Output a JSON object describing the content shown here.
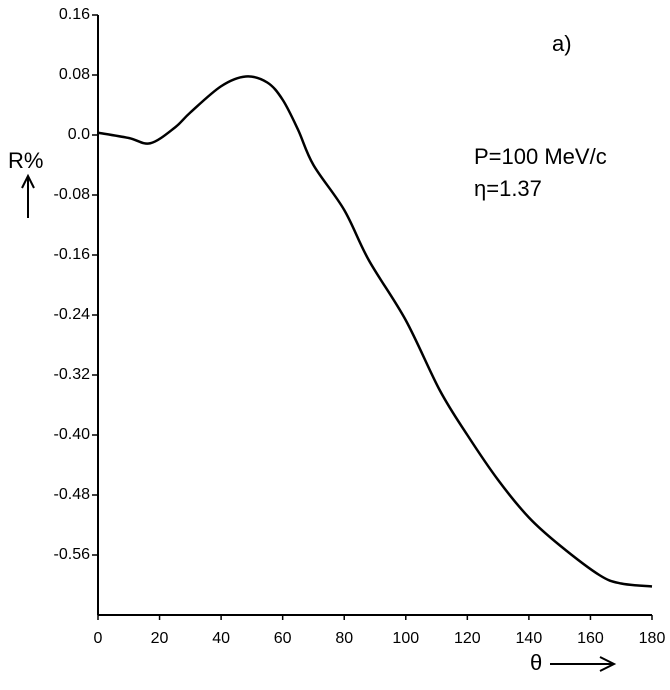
{
  "chart_data": {
    "type": "line",
    "x": [
      0,
      10,
      17,
      25,
      30,
      40,
      48,
      55,
      60,
      65,
      70,
      80,
      88,
      100,
      111,
      120,
      130,
      140,
      150,
      163,
      170,
      180
    ],
    "values": [
      0.003,
      -0.004,
      -0.011,
      0.01,
      0.03,
      0.065,
      0.078,
      0.07,
      0.047,
      0.007,
      -0.04,
      -0.1,
      -0.167,
      -0.247,
      -0.34,
      -0.4,
      -0.46,
      -0.51,
      -0.547,
      -0.587,
      -0.598,
      -0.602
    ],
    "color": "#000000",
    "xlim": [
      0,
      180
    ],
    "xticks": [
      0,
      20,
      40,
      60,
      80,
      100,
      120,
      140,
      160,
      180
    ],
    "ylim": [
      -0.64,
      0.16
    ],
    "yticks": [
      {
        "value": -0.56,
        "label": "-0.56"
      },
      {
        "value": -0.48,
        "label": "-0.48"
      },
      {
        "value": -0.4,
        "label": "-0.40"
      },
      {
        "value": -0.32,
        "label": "-0.32"
      },
      {
        "value": -0.24,
        "label": "-0.24"
      },
      -0.16,
      -0.08,
      {
        "value": 0,
        "label": "0.0"
      },
      0.08,
      0.16
    ],
    "x_label": "θ",
    "y_label": "R%",
    "annotations": [
      "a)",
      "P=100 MeV/c",
      "η=1.37"
    ],
    "grid": false
  }
}
